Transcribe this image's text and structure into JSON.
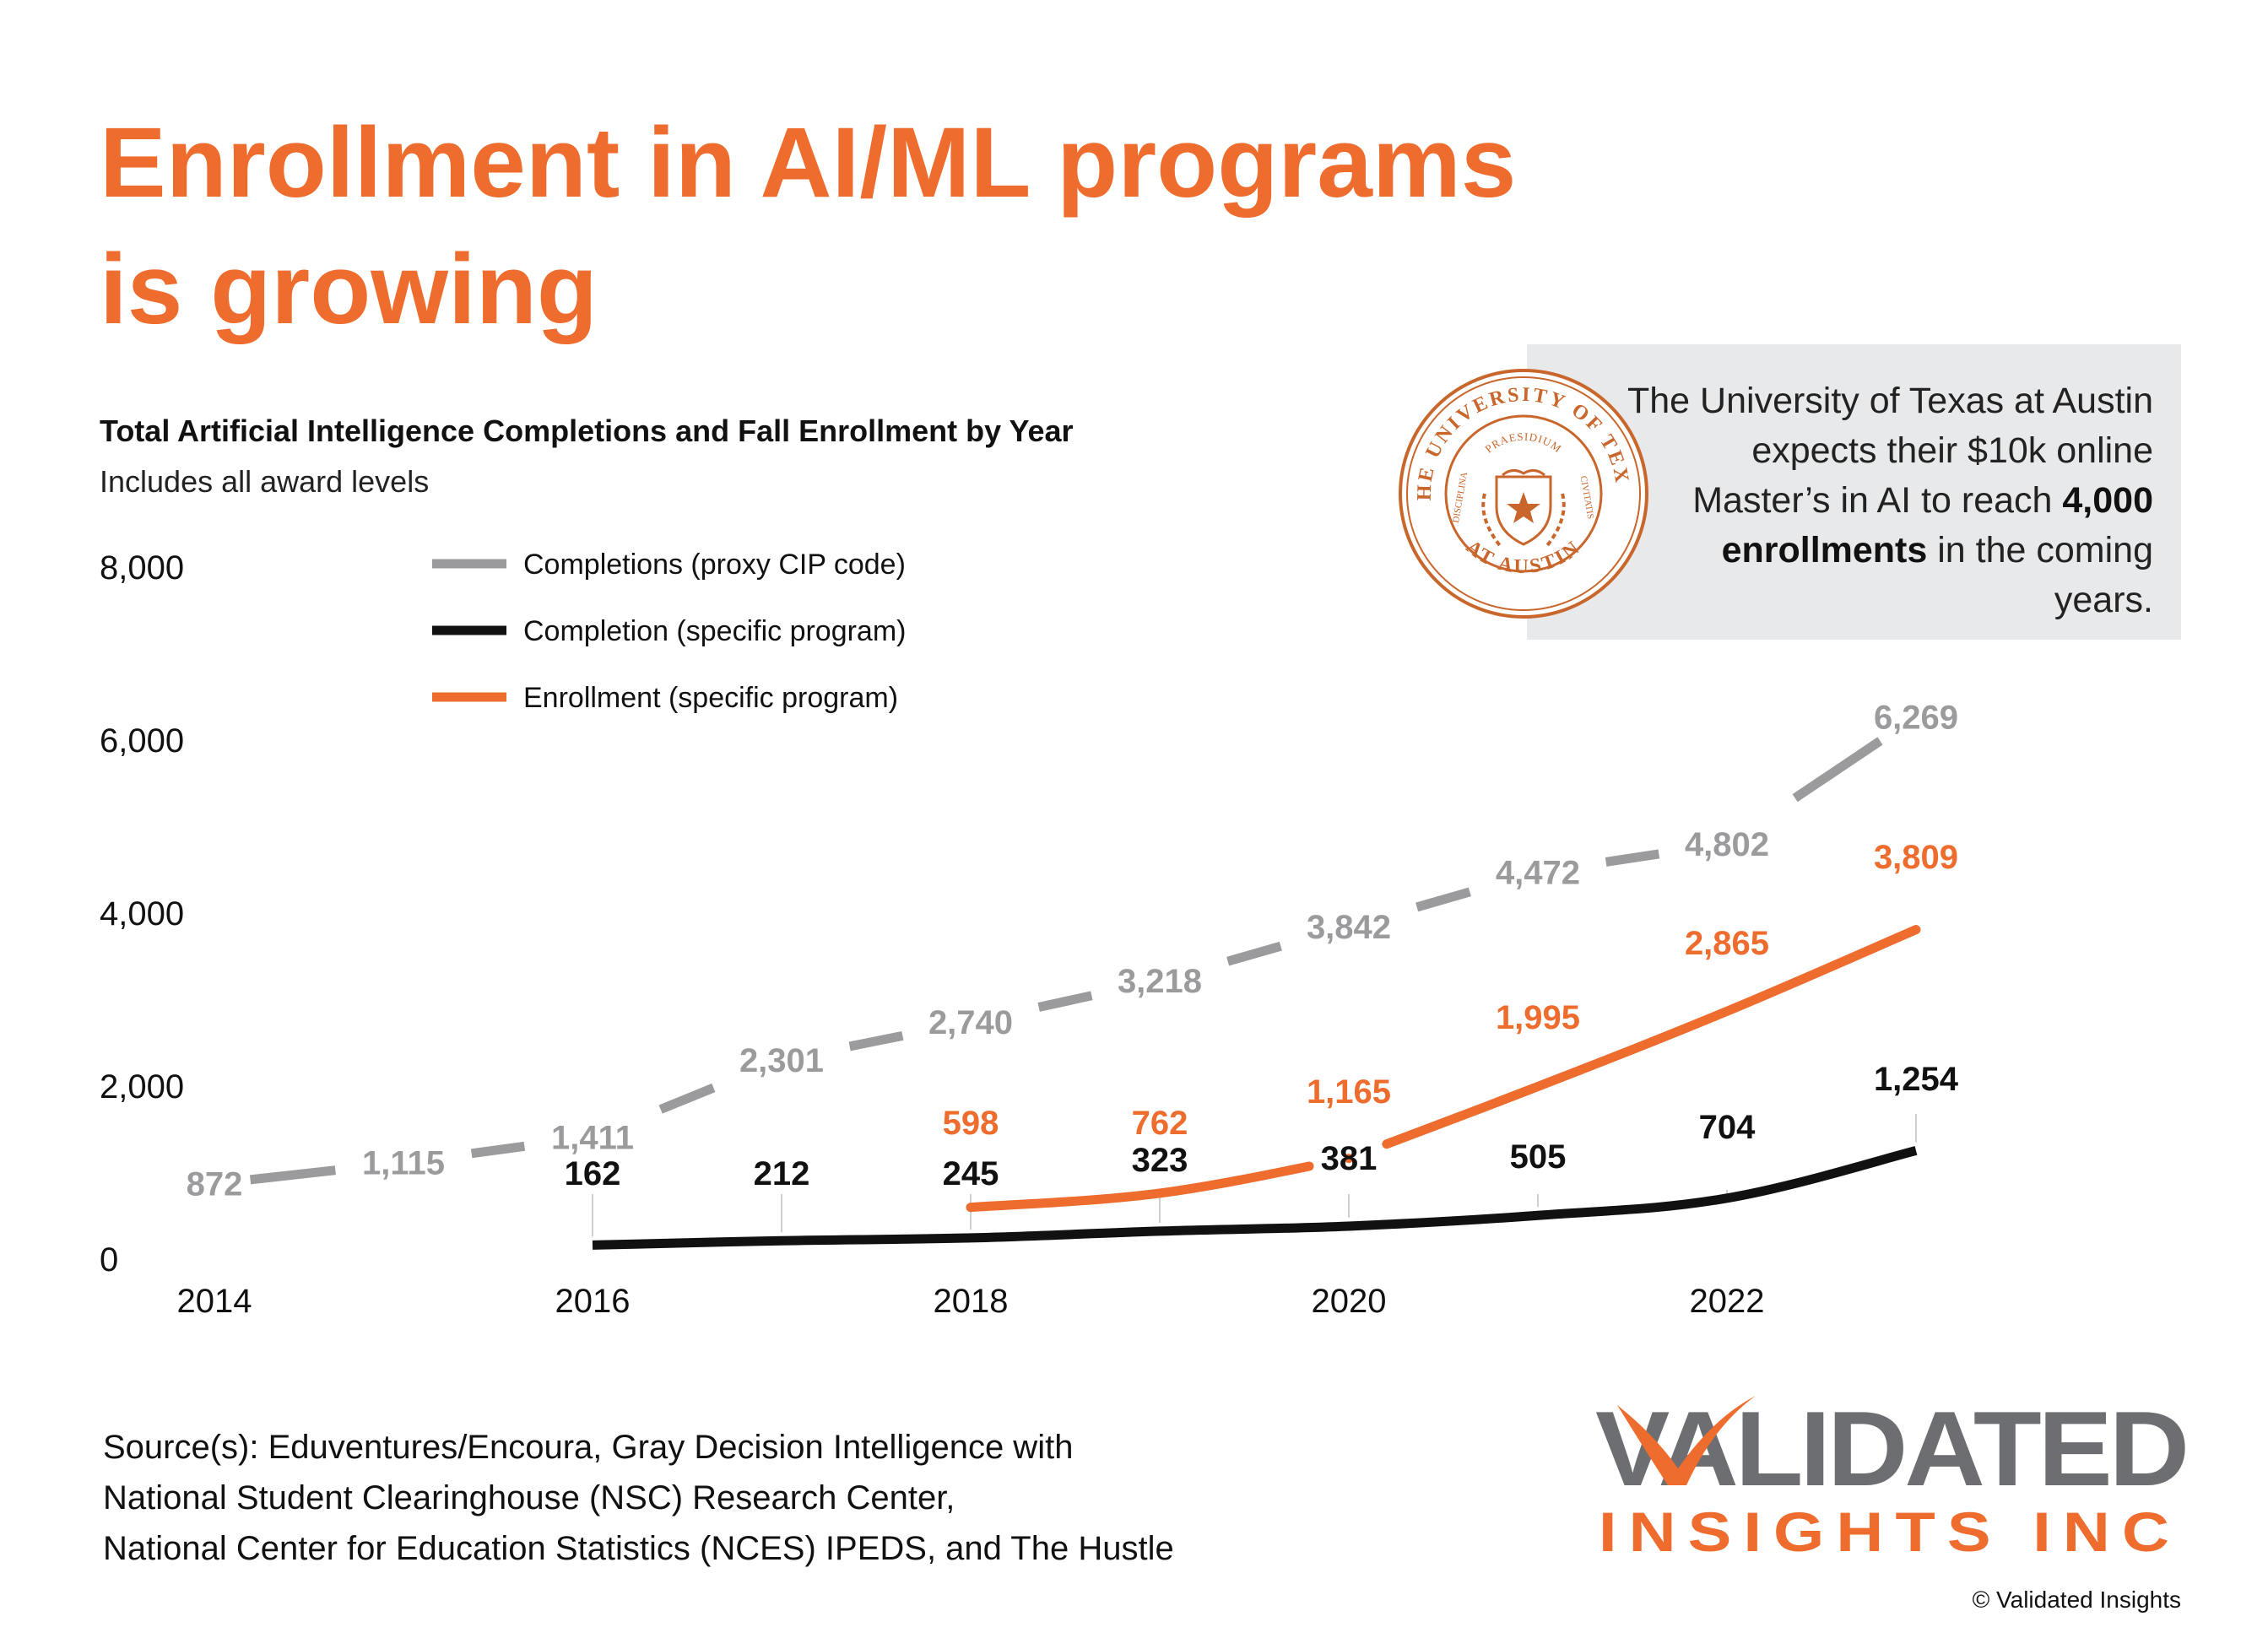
{
  "header": {
    "title_line1": "Enrollment in AI/ML programs",
    "title_line2": "is growing"
  },
  "chart_data": {
    "type": "line",
    "title": "Total Artificial Intelligence Completions and Fall Enrollment by Year",
    "subtitle": "Includes all award levels",
    "xlabel": "",
    "ylabel": "",
    "xlim": [
      2014,
      2023
    ],
    "ylim": [
      0,
      8000
    ],
    "x_ticks": [
      2014,
      2016,
      2018,
      2020,
      2022
    ],
    "x_tick_labels": [
      "2014",
      "2016",
      "2018",
      "2020",
      "2022"
    ],
    "y_ticks": [
      0,
      2000,
      4000,
      6000,
      8000
    ],
    "y_tick_labels": [
      "0",
      "2,000",
      "4,000",
      "6,000",
      "8,000"
    ],
    "grid": false,
    "legend_position": "top-left",
    "series": [
      {
        "name": "Completions (proxy CIP code)",
        "color": "#9b9b9e",
        "x": [
          2014,
          2015,
          2016,
          2017,
          2018,
          2019,
          2020,
          2021,
          2022,
          2023
        ],
        "values": [
          872,
          1115,
          1411,
          2301,
          2740,
          3218,
          3842,
          4472,
          4802,
          6269
        ],
        "labels": [
          "872",
          "1,115",
          "1,411",
          "2,301",
          "2,740",
          "3,218",
          "3,842",
          "4,472",
          "4,802",
          "6,269"
        ]
      },
      {
        "name": "Completion (specific program)",
        "color": "#111111",
        "x": [
          2016,
          2017,
          2018,
          2019,
          2020,
          2021,
          2022,
          2023
        ],
        "values": [
          162,
          212,
          245,
          323,
          381,
          505,
          704,
          1254
        ],
        "labels": [
          "162",
          "212",
          "245",
          "323",
          "381",
          "505",
          "704",
          "1,254"
        ]
      },
      {
        "name": "Enrollment (specific program)",
        "color": "#ee6c2d",
        "x": [
          2018,
          2019,
          2020,
          2021,
          2022,
          2023
        ],
        "values": [
          598,
          762,
          1165,
          1995,
          2865,
          3809
        ],
        "labels": [
          "598",
          "762",
          "1,165",
          "1,995",
          "2,865",
          "3,809"
        ]
      }
    ]
  },
  "callout": {
    "text_before": "The University of Texas at Austin expects their $10k online Master’s in AI to reach ",
    "text_bold": "4,000 enrollments",
    "text_after": " in the coming years.",
    "seal_outer_top": "THE UNIVERSITY OF TEXAS",
    "seal_outer_bottom": "AT AUSTIN",
    "seal_banner": "PRAESIDIUM",
    "seal_left": "DISCIPLINA",
    "seal_right": "CIVITATIS"
  },
  "source": {
    "line1": "Source(s): Eduventures/Encoura, Gray Decision Intelligence with",
    "line2": "National Student Clearinghouse (NSC) Research Center,",
    "line3": "National Center for Education Statistics (NCES) IPEDS, and The Hustle"
  },
  "logo": {
    "word1": "VALIDATED",
    "word2": "INSIGHTS INC",
    "gray": "#6d6e71",
    "orange": "#ee6c2d"
  },
  "copyright": "© Validated Insights",
  "colors": {
    "accent": "#ee6c2d",
    "gray": "#9b9b9e",
    "callout_bg": "#e8e9ea"
  }
}
